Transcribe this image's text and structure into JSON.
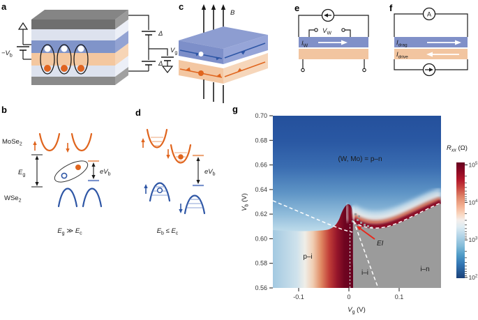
{
  "panels": {
    "a": {
      "label": "a",
      "bias": {
        "var": "−V",
        "sub": "b"
      },
      "delta_top": "Δ",
      "delta_bottom": "Δ",
      "gate": {
        "var": "V",
        "sub": "g"
      }
    },
    "b": {
      "label": "b",
      "material_top": {
        "base": "MoSe",
        "sub": "2"
      },
      "material_bottom": {
        "base": "WSe",
        "sub": "2"
      },
      "gap": {
        "var": "E",
        "sub": "g"
      },
      "bias": {
        "pre": "e",
        "var": "V",
        "sub": "b"
      },
      "caption": {
        "v1": "E",
        "s1": "g",
        "op": " ≫ ",
        "v2": "E",
        "s2": "c"
      }
    },
    "c": {
      "label": "c",
      "field": "B"
    },
    "d": {
      "label": "d",
      "bias": {
        "pre": "e",
        "var": "V",
        "sub": "b"
      },
      "caption": {
        "v1": "E",
        "s1": "b",
        "op": " ≤ ",
        "v2": "E",
        "s2": "c"
      }
    },
    "e": {
      "label": "e",
      "voltage": {
        "var": "V",
        "sub": "W"
      },
      "current": {
        "var": "I",
        "sub": "W"
      }
    },
    "f": {
      "label": "f",
      "ammeter": "A",
      "drag": {
        "var": "I",
        "sub": "drag"
      },
      "drive": {
        "var": "I",
        "sub": "drive"
      }
    },
    "g": {
      "label": "g",
      "xlabel": {
        "var": "V",
        "sub": "g",
        "unit": " (V)"
      },
      "ylabel": {
        "var": "V",
        "sub": "b",
        "unit": " (V)"
      },
      "x_ticks": [
        "-0.1",
        "0",
        "0.1"
      ],
      "y_ticks": [
        "0.70",
        "0.68",
        "0.66",
        "0.64",
        "0.62",
        "0.60",
        "0.58",
        "0.56"
      ],
      "colorbar": {
        "title": {
          "var": "R",
          "sub": "xx",
          "unit": " (Ω)"
        },
        "ticks": [
          {
            "base": "10",
            "exp": "5"
          },
          {
            "base": "10",
            "exp": "4"
          },
          {
            "base": "10",
            "exp": "3"
          },
          {
            "base": "10",
            "exp": "2"
          }
        ]
      },
      "regions": {
        "pn": "(W, Mo) = p–n",
        "pi": "p–i",
        "ii": "i–i",
        "in": "i–n",
        "ei": "EI"
      }
    }
  },
  "chart_data": {
    "type": "heatmap",
    "title": "",
    "xlabel": "V_g (V)",
    "ylabel": "V_b (V)",
    "x_range": [
      -0.151,
      0.183
    ],
    "y_range": [
      0.56,
      0.7
    ],
    "x_ticks": [
      -0.1,
      0,
      0.1
    ],
    "y_ticks": [
      0.56,
      0.58,
      0.6,
      0.62,
      0.64,
      0.66,
      0.68,
      0.7
    ],
    "colorbar": {
      "label": "R_xx (Ohm)",
      "scale": "log",
      "range": [
        100,
        100000
      ],
      "colormap": "RdBu_r"
    },
    "x": [
      -0.15,
      -0.12,
      -0.09,
      -0.06,
      -0.03,
      -0.01,
      0.01,
      0.04,
      0.08,
      0.12,
      0.16,
      0.19
    ],
    "y": [
      0.7,
      0.68,
      0.66,
      0.64,
      0.62,
      0.6,
      0.58,
      0.56
    ],
    "log10_Rxx_grid_note": "approximate values read from colours; null = grey masked region (no data)",
    "log10_Rxx_grid": [
      [
        2.0,
        2.0,
        2.0,
        2.0,
        2.1,
        2.1,
        2.1,
        2.1,
        2.1,
        2.2,
        2.2,
        2.2
      ],
      [
        2.1,
        2.1,
        2.2,
        2.2,
        2.2,
        2.3,
        2.3,
        2.3,
        2.3,
        2.3,
        2.4,
        2.4
      ],
      [
        2.3,
        2.3,
        2.4,
        2.4,
        2.5,
        2.5,
        2.5,
        2.5,
        2.6,
        2.6,
        2.6,
        2.6
      ],
      [
        2.6,
        2.6,
        2.7,
        2.8,
        2.9,
        3.0,
        3.0,
        2.9,
        3.0,
        3.0,
        3.1,
        3.1
      ],
      [
        2.9,
        3.0,
        3.1,
        3.4,
        4.2,
        5.0,
        4.3,
        3.8,
        4.3,
        5.0,
        5.0,
        4.0
      ],
      [
        3.1,
        3.3,
        3.6,
        4.2,
        4.8,
        5.0,
        null,
        null,
        null,
        null,
        null,
        null
      ],
      [
        3.0,
        3.2,
        3.5,
        4.1,
        4.8,
        5.0,
        null,
        null,
        null,
        null,
        null,
        null
      ],
      [
        3.0,
        3.1,
        3.4,
        4.0,
        4.7,
        5.0,
        null,
        null,
        null,
        null,
        null,
        null
      ]
    ],
    "regions": [
      {
        "label": "(W, Mo) = p–n",
        "x": 0.02,
        "y": 0.663
      },
      {
        "label": "p–i",
        "x": -0.082,
        "y": 0.584
      },
      {
        "label": "i–i",
        "x": 0.032,
        "y": 0.571
      },
      {
        "label": "i–n",
        "x": 0.15,
        "y": 0.577
      },
      {
        "label": "EI",
        "x": 0.058,
        "y": 0.596,
        "arrow_tip": [
          0.018,
          0.611
        ]
      }
    ],
    "phase_boundaries": {
      "white_dashed_left": [
        [
          -0.151,
          0.632
        ],
        [
          -0.06,
          0.615
        ],
        [
          0.0,
          0.604
        ]
      ],
      "white_dashed_right": [
        [
          0.01,
          0.603
        ],
        [
          0.06,
          0.607
        ],
        [
          0.12,
          0.616
        ],
        [
          0.183,
          0.627
        ]
      ],
      "white_dashed_steep": [
        [
          0.01,
          0.617
        ],
        [
          0.06,
          0.56
        ]
      ],
      "grey_dashed_vertical_x": 0.0
    },
    "colors": {
      "accent_red": "#e8271b",
      "masked_grey": "#9b9b9b",
      "slab_blue": "#8090c8",
      "slab_orange": "#f2c5a0"
    }
  }
}
